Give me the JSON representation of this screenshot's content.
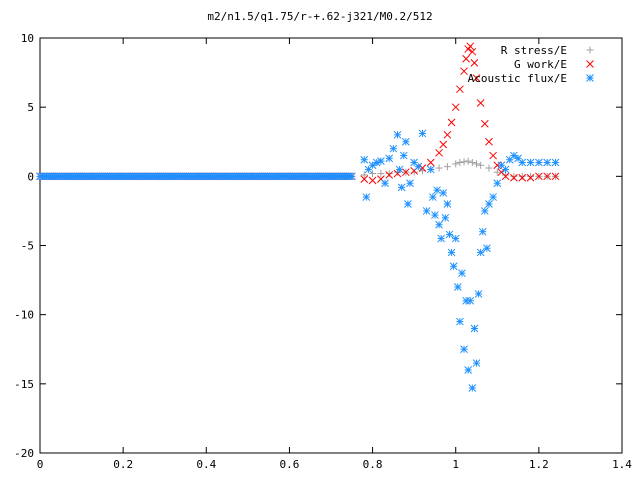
{
  "chart_data": {
    "type": "scatter",
    "title": "m2/n1.5/q1.75/r-+.62-j321/M0.2/512",
    "xlabel": "",
    "ylabel": "",
    "xlim": [
      0,
      1.4
    ],
    "ylim": [
      -20,
      10
    ],
    "xticks": [
      "0",
      "0.2",
      "0.4",
      "0.6",
      "0.8",
      "1",
      "1.2",
      "1.4"
    ],
    "yticks": [
      "10",
      "5",
      "0",
      "-5",
      "-10",
      "-15",
      "-20"
    ],
    "grid": false,
    "legend_position": "top-right",
    "series": [
      {
        "name": "R stress/E",
        "marker": "plus",
        "color": "#a0a0a0",
        "description": "near 0 everywhere except small bump to ~1.1 around x=1.03",
        "x": [
          0.0,
          0.05,
          0.1,
          0.15,
          0.2,
          0.25,
          0.3,
          0.35,
          0.4,
          0.45,
          0.5,
          0.55,
          0.6,
          0.65,
          0.7,
          0.75,
          0.78,
          0.8,
          0.82,
          0.84,
          0.86,
          0.88,
          0.9,
          0.92,
          0.94,
          0.96,
          0.98,
          1.0,
          1.01,
          1.02,
          1.03,
          1.04,
          1.05,
          1.06,
          1.08,
          1.1,
          1.12,
          1.14,
          1.16,
          1.18,
          1.2,
          1.22,
          1.24
        ],
        "y": [
          0,
          0,
          0,
          0,
          0,
          0,
          0,
          0,
          0,
          0,
          0,
          0,
          0,
          0,
          0,
          0,
          0.1,
          0.2,
          0.2,
          0.2,
          0.3,
          0.3,
          0.3,
          0.4,
          0.5,
          0.6,
          0.7,
          0.9,
          1.0,
          1.05,
          1.1,
          1.0,
          0.9,
          0.8,
          0.6,
          0.3,
          0.1,
          0.0,
          0.0,
          0.0,
          0.0,
          0.0,
          0.0
        ]
      },
      {
        "name": "G work/E",
        "marker": "cross",
        "color": "#ff0000",
        "x": [
          0.0,
          0.1,
          0.2,
          0.3,
          0.4,
          0.5,
          0.6,
          0.7,
          0.75,
          0.78,
          0.8,
          0.82,
          0.84,
          0.86,
          0.88,
          0.9,
          0.92,
          0.94,
          0.96,
          0.97,
          0.98,
          0.99,
          1.0,
          1.01,
          1.02,
          1.025,
          1.03,
          1.035,
          1.04,
          1.045,
          1.05,
          1.06,
          1.07,
          1.08,
          1.09,
          1.1,
          1.11,
          1.12,
          1.14,
          1.16,
          1.18,
          1.2,
          1.22,
          1.24
        ],
        "y": [
          0,
          0,
          0,
          0,
          0,
          0,
          0,
          0,
          0,
          -0.2,
          -0.3,
          -0.2,
          0.1,
          0.2,
          0.3,
          0.4,
          0.6,
          1.0,
          1.7,
          2.3,
          3.0,
          3.9,
          5.0,
          6.3,
          7.6,
          8.5,
          9.2,
          9.4,
          9.0,
          8.2,
          7.1,
          5.3,
          3.8,
          2.5,
          1.5,
          0.8,
          0.3,
          0.0,
          -0.1,
          -0.1,
          -0.1,
          0.0,
          0.0,
          0.0
        ]
      },
      {
        "name": "Acoustic flux/E",
        "marker": "star",
        "color": "#1e90ff",
        "x": [
          0.0,
          0.05,
          0.1,
          0.15,
          0.2,
          0.25,
          0.3,
          0.35,
          0.4,
          0.45,
          0.5,
          0.55,
          0.6,
          0.65,
          0.7,
          0.75,
          0.78,
          0.785,
          0.79,
          0.8,
          0.81,
          0.82,
          0.83,
          0.84,
          0.85,
          0.86,
          0.865,
          0.87,
          0.875,
          0.88,
          0.885,
          0.89,
          0.9,
          0.91,
          0.92,
          0.93,
          0.94,
          0.945,
          0.95,
          0.955,
          0.96,
          0.965,
          0.97,
          0.975,
          0.98,
          0.985,
          0.99,
          0.995,
          1.0,
          1.005,
          1.01,
          1.015,
          1.02,
          1.025,
          1.03,
          1.035,
          1.04,
          1.045,
          1.05,
          1.055,
          1.06,
          1.065,
          1.07,
          1.075,
          1.08,
          1.09,
          1.1,
          1.11,
          1.12,
          1.13,
          1.14,
          1.15,
          1.16,
          1.18,
          1.2,
          1.22,
          1.24
        ],
        "y": [
          0,
          0,
          0,
          0,
          0,
          0,
          0,
          0,
          0,
          0,
          0,
          0,
          0,
          0,
          0,
          0,
          1.2,
          -1.5,
          0.5,
          0.8,
          1.0,
          1.1,
          -0.5,
          1.3,
          2.0,
          3.0,
          0.5,
          -0.8,
          1.5,
          2.5,
          -2.0,
          -0.5,
          1.0,
          0.7,
          3.1,
          -2.5,
          0.5,
          -1.5,
          -2.8,
          -1.0,
          -3.5,
          -4.5,
          -1.2,
          -3.0,
          -2.0,
          -4.2,
          -5.5,
          -6.5,
          -4.5,
          -8.0,
          -10.5,
          -7.0,
          -12.5,
          -9.0,
          -14.0,
          -9.0,
          -15.3,
          -11.0,
          -13.5,
          -8.5,
          -5.5,
          -4.0,
          -2.5,
          -5.2,
          -2.0,
          -1.5,
          -0.5,
          0.8,
          0.5,
          1.2,
          1.5,
          1.3,
          1.0,
          1.0,
          1.0,
          1.0,
          1.0
        ]
      }
    ]
  }
}
